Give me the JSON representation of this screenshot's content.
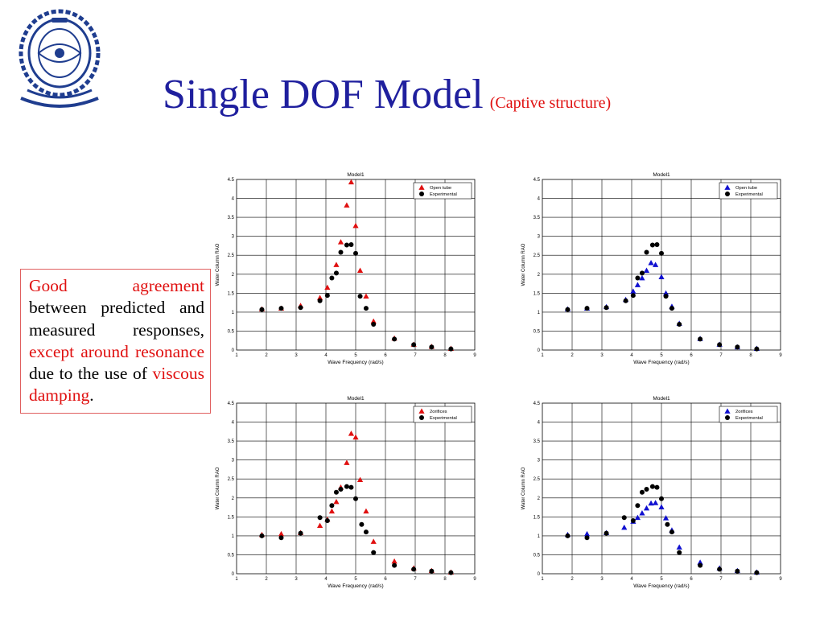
{
  "slide": {
    "title": "Single DOF Model",
    "subtitle": "(Captive structure)",
    "colors": {
      "title": "#1f1f9e",
      "accent": "#e01010",
      "box_border": "#e06060"
    },
    "logo_icon": "academy-emblem-icon",
    "callout": {
      "p1": "Good agreement",
      "p2": " between predicted and measured responses, ",
      "p3": "except around resonance",
      "p4": " due to the use of ",
      "p5": "viscous damping",
      "p6": "."
    }
  },
  "chart_data": [
    {
      "type": "scatter",
      "title": "Model1",
      "xlabel": "Wave Frequency (rad/s)",
      "ylabel": "Water Column RAO",
      "xlim": [
        1,
        9
      ],
      "ylim": [
        0,
        4.5
      ],
      "xticks": [
        1,
        2,
        3,
        4,
        5,
        6,
        7,
        8,
        9
      ],
      "yticks": [
        0,
        0.5,
        1,
        1.5,
        2,
        2.5,
        3,
        3.5,
        4,
        4.5
      ],
      "grid": true,
      "legend": "top-right",
      "series": [
        {
          "name": "Open tube",
          "marker": "triangle",
          "color": "#e01010",
          "x": [
            1.85,
            2.5,
            3.15,
            3.8,
            4.05,
            4.35,
            4.5,
            4.7,
            4.85,
            5.0,
            5.15,
            5.35,
            5.6,
            6.3,
            6.95,
            7.55,
            8.2
          ],
          "y": [
            1.08,
            1.1,
            1.17,
            1.38,
            1.65,
            2.25,
            2.85,
            3.82,
            4.43,
            3.28,
            2.1,
            1.42,
            0.76,
            0.31,
            0.15,
            0.09,
            0.04
          ]
        },
        {
          "name": "Experimental",
          "marker": "circle",
          "color": "#000000",
          "x": [
            1.85,
            2.5,
            3.15,
            3.8,
            4.05,
            4.2,
            4.35,
            4.5,
            4.7,
            4.85,
            5.0,
            5.15,
            5.35,
            5.6,
            6.3,
            6.95,
            7.55,
            8.2
          ],
          "y": [
            1.07,
            1.1,
            1.12,
            1.3,
            1.44,
            1.9,
            2.03,
            2.58,
            2.77,
            2.78,
            2.55,
            1.42,
            1.1,
            0.68,
            0.29,
            0.14,
            0.08,
            0.03
          ]
        }
      ]
    },
    {
      "type": "scatter",
      "title": "Model1",
      "xlabel": "Wave Frequency (rad/s)",
      "ylabel": "Water Column RAO",
      "xlim": [
        1,
        9
      ],
      "ylim": [
        0,
        4.5
      ],
      "xticks": [
        1,
        2,
        3,
        4,
        5,
        6,
        7,
        8,
        9
      ],
      "yticks": [
        0,
        0.5,
        1,
        1.5,
        2,
        2.5,
        3,
        3.5,
        4,
        4.5
      ],
      "grid": true,
      "legend": "top-right",
      "series": [
        {
          "name": "Open tube",
          "marker": "triangle",
          "color": "#1010d0",
          "x": [
            1.85,
            2.5,
            3.15,
            3.8,
            4.05,
            4.2,
            4.35,
            4.5,
            4.65,
            4.8,
            5.0,
            5.15,
            5.35,
            5.6,
            6.3,
            6.95,
            7.55,
            8.2
          ],
          "y": [
            1.08,
            1.1,
            1.14,
            1.33,
            1.55,
            1.72,
            1.9,
            2.1,
            2.3,
            2.25,
            1.93,
            1.5,
            1.15,
            0.7,
            0.3,
            0.15,
            0.08,
            0.04
          ]
        },
        {
          "name": "Experimental",
          "marker": "circle",
          "color": "#000000",
          "x": [
            1.85,
            2.5,
            3.15,
            3.8,
            4.05,
            4.2,
            4.35,
            4.5,
            4.7,
            4.85,
            5.0,
            5.15,
            5.35,
            5.6,
            6.3,
            6.95,
            7.55,
            8.2
          ],
          "y": [
            1.07,
            1.1,
            1.12,
            1.3,
            1.44,
            1.9,
            2.03,
            2.58,
            2.77,
            2.78,
            2.55,
            1.42,
            1.1,
            0.68,
            0.29,
            0.14,
            0.08,
            0.03
          ]
        }
      ]
    },
    {
      "type": "scatter",
      "title": "Model1",
      "xlabel": "Wave Frequency (rad/s)",
      "ylabel": "Water Column RAO",
      "xlim": [
        1,
        9
      ],
      "ylim": [
        0,
        4.5
      ],
      "xticks": [
        1,
        2,
        3,
        4,
        5,
        6,
        7,
        8,
        9
      ],
      "yticks": [
        0,
        0.5,
        1,
        1.5,
        2,
        2.5,
        3,
        3.5,
        4,
        4.5
      ],
      "grid": true,
      "legend": "top-right",
      "series": [
        {
          "name": "2orifices",
          "marker": "triangle",
          "color": "#e01010",
          "x": [
            1.85,
            2.5,
            3.15,
            3.8,
            4.05,
            4.2,
            4.35,
            4.5,
            4.7,
            4.85,
            5.0,
            5.15,
            5.35,
            5.6,
            6.3,
            6.95,
            7.55,
            8.2
          ],
          "y": [
            1.03,
            1.05,
            1.08,
            1.27,
            1.43,
            1.65,
            1.9,
            2.28,
            2.93,
            3.7,
            3.6,
            2.48,
            1.65,
            0.85,
            0.33,
            0.15,
            0.08,
            0.04
          ]
        },
        {
          "name": "Experimental",
          "marker": "circle",
          "color": "#000000",
          "x": [
            1.85,
            2.5,
            3.15,
            3.8,
            4.05,
            4.2,
            4.35,
            4.5,
            4.7,
            4.85,
            5.0,
            5.2,
            5.35,
            5.6,
            6.3,
            6.95,
            7.55,
            8.2
          ],
          "y": [
            1.0,
            0.95,
            1.07,
            1.48,
            1.4,
            1.8,
            2.15,
            2.23,
            2.3,
            2.28,
            1.98,
            1.3,
            1.1,
            0.56,
            0.22,
            0.12,
            0.07,
            0.03
          ]
        }
      ]
    },
    {
      "type": "scatter",
      "title": "Model1",
      "xlabel": "Wave Frequency (rad/s)",
      "ylabel": "Water Column RAO",
      "xlim": [
        1,
        9
      ],
      "ylim": [
        0,
        4.5
      ],
      "xticks": [
        1,
        2,
        3,
        4,
        5,
        6,
        7,
        8,
        9
      ],
      "yticks": [
        0,
        0.5,
        1,
        1.5,
        2,
        2.5,
        3,
        3.5,
        4,
        4.5
      ],
      "grid": true,
      "legend": "top-right",
      "series": [
        {
          "name": "2orifices",
          "marker": "triangle",
          "color": "#1010d0",
          "x": [
            1.85,
            2.5,
            3.15,
            3.75,
            4.05,
            4.2,
            4.35,
            4.5,
            4.65,
            4.8,
            5.0,
            5.15,
            5.35,
            5.6,
            6.3,
            6.95,
            7.55,
            8.2
          ],
          "y": [
            1.03,
            1.05,
            1.08,
            1.22,
            1.38,
            1.48,
            1.6,
            1.73,
            1.86,
            1.87,
            1.76,
            1.47,
            1.15,
            0.7,
            0.3,
            0.15,
            0.08,
            0.04
          ]
        },
        {
          "name": "Experimental",
          "marker": "circle",
          "color": "#000000",
          "x": [
            1.85,
            2.5,
            3.15,
            3.75,
            4.05,
            4.2,
            4.35,
            4.5,
            4.7,
            4.85,
            5.0,
            5.2,
            5.35,
            5.6,
            6.3,
            6.95,
            7.55,
            8.2
          ],
          "y": [
            1.0,
            0.95,
            1.07,
            1.48,
            1.4,
            1.8,
            2.15,
            2.23,
            2.3,
            2.28,
            1.98,
            1.3,
            1.1,
            0.56,
            0.22,
            0.12,
            0.07,
            0.03
          ]
        }
      ]
    }
  ]
}
